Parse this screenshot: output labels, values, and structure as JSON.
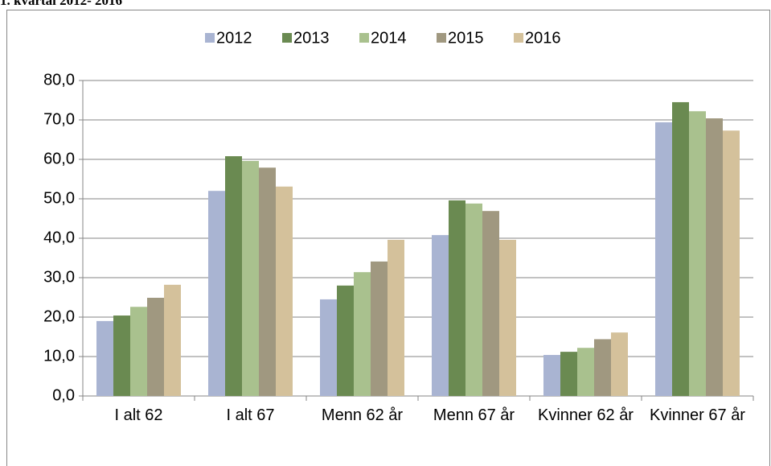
{
  "header": {
    "title": "1. kvartal 2012- 2016"
  },
  "chart_data": {
    "type": "bar",
    "categories": [
      "I alt 62",
      "I alt 67",
      "Menn 62 år",
      "Menn 67 år",
      "Kvinner 62 år",
      "Kvinner 67 år"
    ],
    "series": [
      {
        "name": "2012",
        "color": "#a9b4d2",
        "values": [
          19.0,
          52.0,
          24.5,
          40.8,
          10.4,
          69.4
        ]
      },
      {
        "name": "2013",
        "color": "#6a8a51",
        "values": [
          20.4,
          60.8,
          28.0,
          49.6,
          11.2,
          74.5
        ]
      },
      {
        "name": "2014",
        "color": "#a9c18e",
        "values": [
          22.6,
          59.6,
          31.4,
          48.8,
          12.2,
          72.2
        ]
      },
      {
        "name": "2015",
        "color": "#a09880",
        "values": [
          24.9,
          57.9,
          34.1,
          46.9,
          14.4,
          70.4
        ]
      },
      {
        "name": "2016",
        "color": "#d4c19b",
        "values": [
          28.2,
          53.1,
          39.6,
          39.6,
          16.1,
          67.3
        ]
      }
    ],
    "ylim": [
      0,
      80
    ],
    "yticks": [
      {
        "value": 0,
        "label": "0,0"
      },
      {
        "value": 10,
        "label": "10,0"
      },
      {
        "value": 20,
        "label": "20,0"
      },
      {
        "value": 30,
        "label": "30,0"
      },
      {
        "value": 40,
        "label": "40,0"
      },
      {
        "value": 50,
        "label": "50,0"
      },
      {
        "value": 60,
        "label": "60,0"
      },
      {
        "value": 70,
        "label": "70,0"
      },
      {
        "value": 80,
        "label": "80,0"
      }
    ],
    "grid": true,
    "legend": "top"
  }
}
